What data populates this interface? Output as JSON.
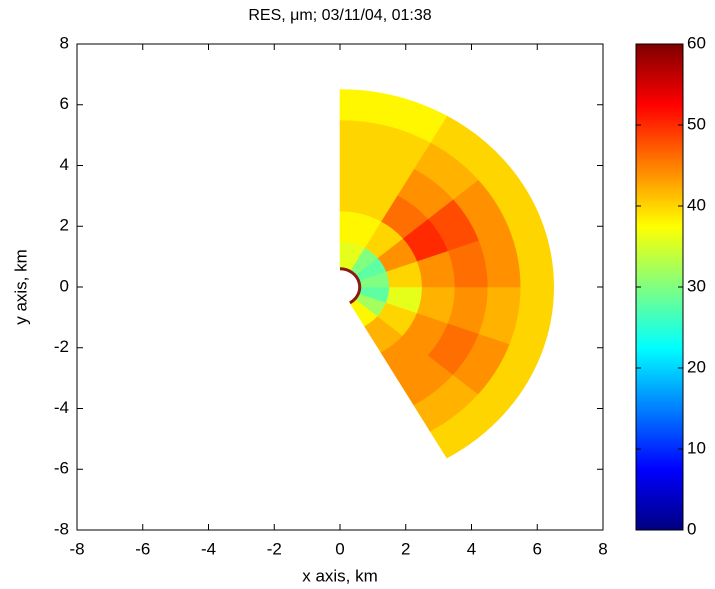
{
  "chart_data": {
    "type": "polar_heatmap",
    "title": "RES, μm; 03/11/04, 01:38",
    "x_label": "x axis, km",
    "y_label": "y axis, km",
    "xlim": [
      -8,
      8
    ],
    "ylim": [
      -8,
      8
    ],
    "xticks": [
      -8,
      -6,
      -4,
      -2,
      0,
      2,
      4,
      6,
      8
    ],
    "yticks": [
      -8,
      -6,
      -4,
      -2,
      0,
      2,
      4,
      6,
      8
    ],
    "colormap": "jet",
    "clim": [
      0,
      60
    ],
    "cticks": [
      0,
      10,
      20,
      30,
      40,
      50,
      60
    ],
    "r_edges": [
      0.6,
      1.5,
      2.5,
      3.5,
      4.5,
      5.5,
      6.5
    ],
    "theta_edges": [
      -60,
      -40,
      -20,
      0,
      20,
      40,
      60,
      90
    ],
    "values": [
      [
        38,
        32,
        28,
        30,
        28,
        30,
        36
      ],
      [
        42,
        40,
        36,
        40,
        44,
        40,
        38
      ],
      [
        44,
        44,
        42,
        44,
        50,
        46,
        40
      ],
      [
        44,
        46,
        44,
        46,
        48,
        44,
        40
      ],
      [
        42,
        44,
        42,
        44,
        44,
        42,
        40
      ],
      [
        40,
        40,
        40,
        40,
        40,
        40,
        38
      ]
    ]
  }
}
